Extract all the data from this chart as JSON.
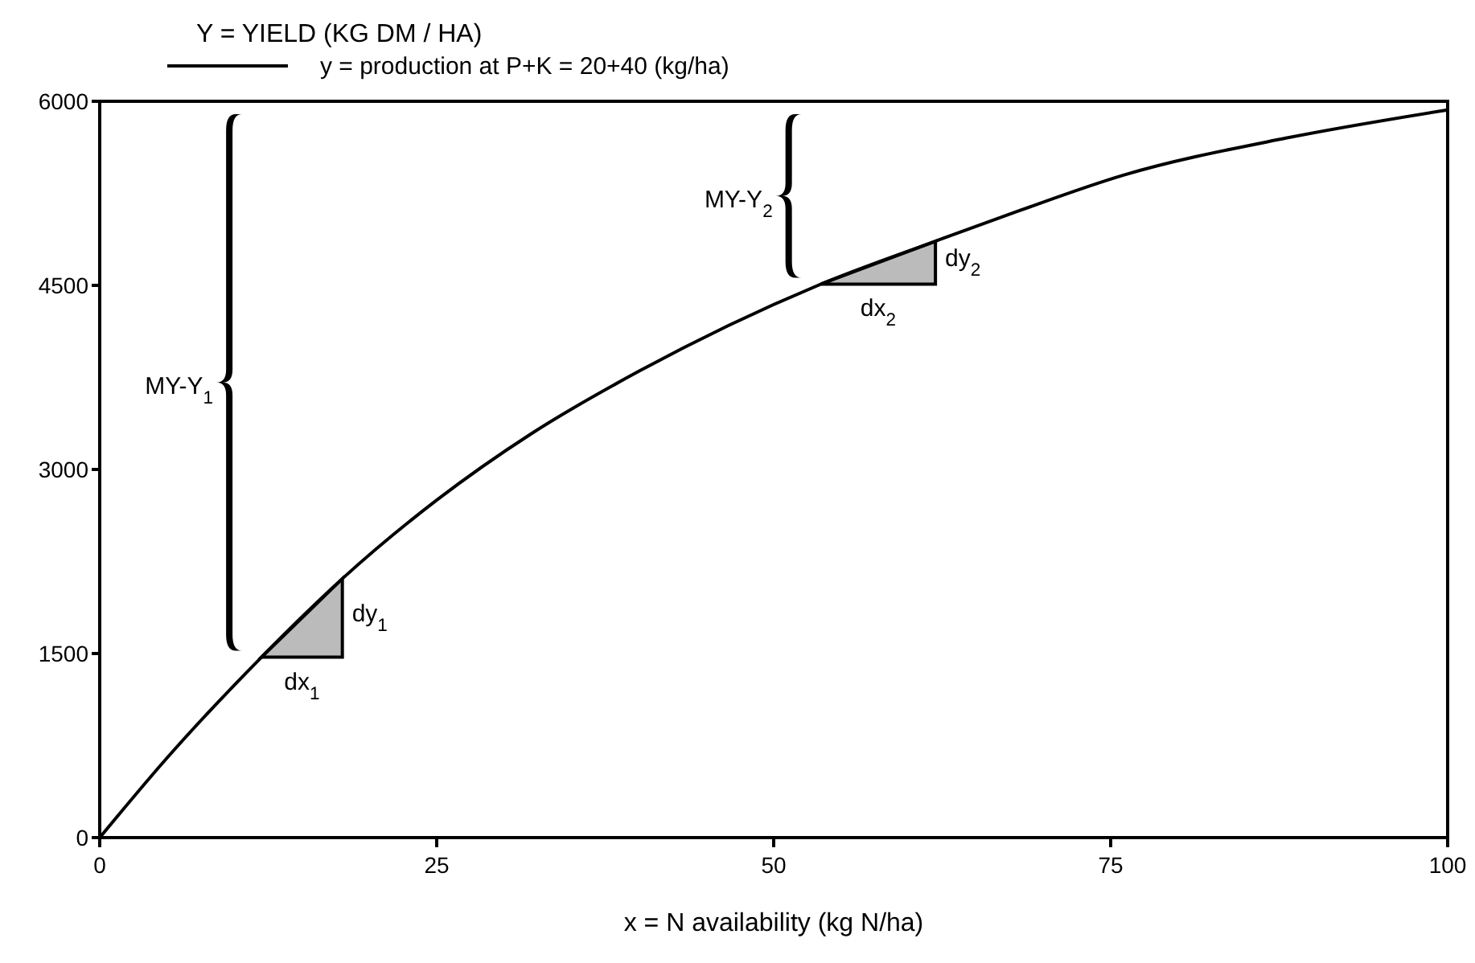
{
  "chart_data": {
    "type": "line",
    "ylabel": "Y = YIELD (KG DM / HA)",
    "xlabel": "x =  N availability (kg N/ha)",
    "x": [
      0,
      5,
      12,
      18,
      25,
      32,
      40,
      53.5,
      62,
      68,
      76,
      88,
      100
    ],
    "series": [
      {
        "name": "y = production at P+K = 20+40 (kg/ha)",
        "color": "#000000",
        "values": [
          0,
          650,
          1470,
          2110,
          2750,
          3290,
          3800,
          4510,
          4860,
          5100,
          5400,
          5700,
          5930
        ]
      }
    ],
    "xlim": [
      0,
      100
    ],
    "xticks": [
      0,
      25,
      50,
      75,
      100
    ],
    "ylim": [
      0,
      6000
    ],
    "yticks": [
      0,
      1500,
      3000,
      4500,
      6000
    ],
    "legend": "top left",
    "grid": false,
    "marker": "none",
    "line_style": "solid",
    "annotations": [
      "dx$_{1}$",
      "dy$_{1}$",
      "MY-Y$_{1}$",
      "dx$_{2}$",
      "dy$_{2}$",
      "MY-Y$_{2}$"
    ]
  }
}
